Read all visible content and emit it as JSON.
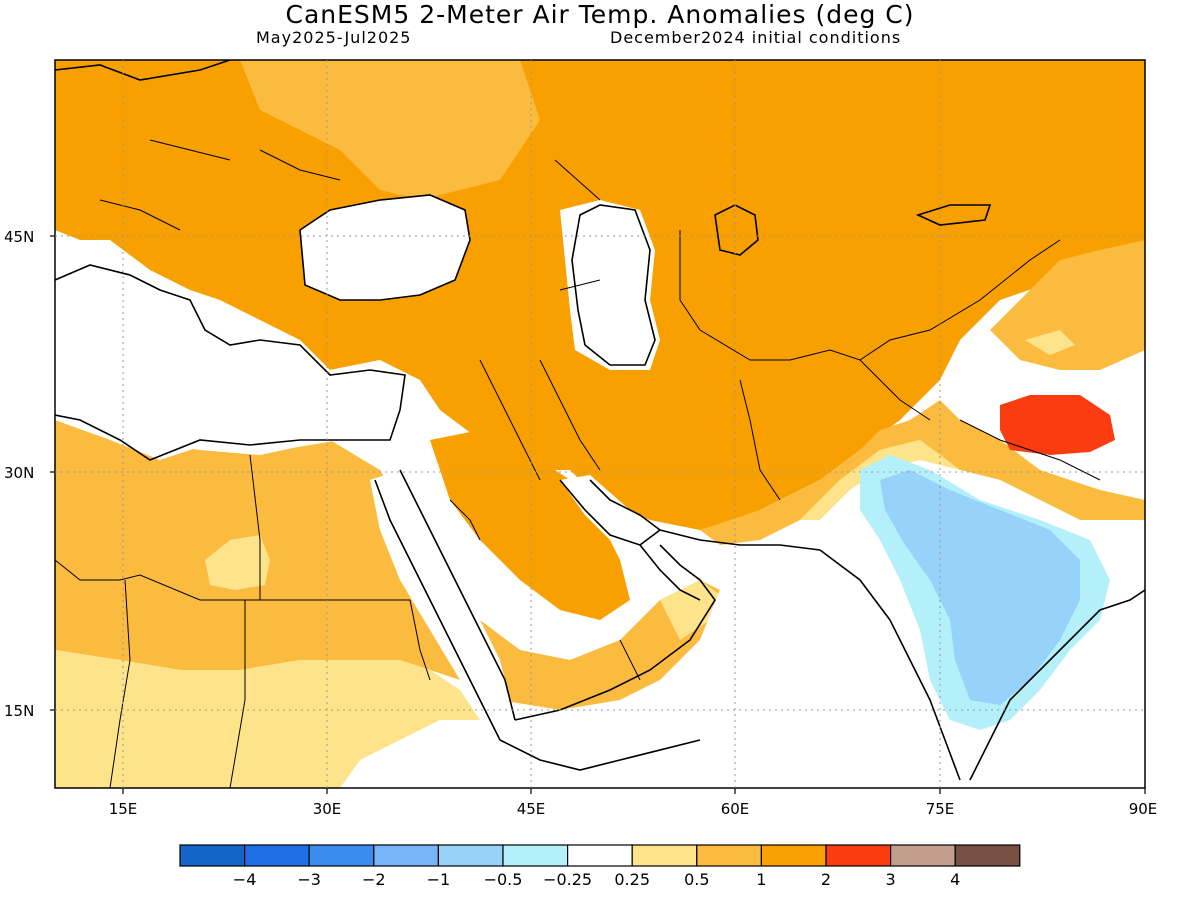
{
  "header": {
    "title": "CanESM5 2-Meter Air Temp. Anomalies (deg C)",
    "period": "May2025-Jul2025",
    "init": "December2024 initial conditions"
  },
  "map": {
    "lat_labels": [
      "45N",
      "30N",
      "15N"
    ],
    "lon_labels": [
      "15E",
      "30E",
      "45E",
      "60E",
      "75E",
      "90E"
    ],
    "colors": {
      "land_default": "#ffffff",
      "anom_pos_0_5_1": "#fbbb3f",
      "anom_pos_1_2": "#f8a000",
      "anom_pos_0_25_0_5": "#fde38a",
      "anom_pos_2_3": "#fa3c10",
      "anom_neg_0_25_0_5": "#b4f0fa",
      "anom_neg_0_5_1": "#96d2fa",
      "coastline": "#000000"
    }
  },
  "colorbar": {
    "colors": [
      "#1565c8",
      "#1e6ee6",
      "#3c8cf0",
      "#78b4f8",
      "#96d2fa",
      "#b4f0fa",
      "#ffffff",
      "#fde38a",
      "#fbbb3f",
      "#f8a000",
      "#fa3c10",
      "#c39e8c",
      "#785044"
    ],
    "labels": [
      "-4",
      "-3",
      "-2",
      "-1",
      "-0.5",
      "-0.25",
      "0.25",
      "0.5",
      "1",
      "2",
      "3",
      "4"
    ]
  }
}
